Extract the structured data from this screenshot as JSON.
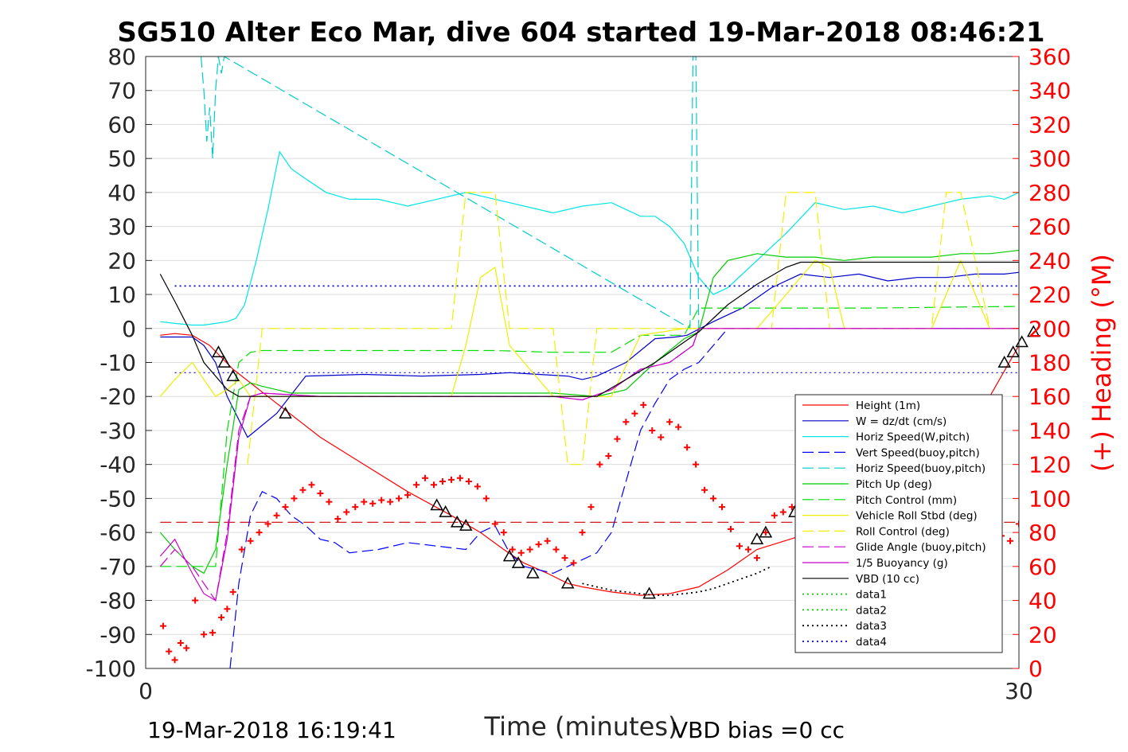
{
  "chart_data": {
    "type": "line",
    "title": "SG510 Alter Eco Mar, dive 604 started 19-Mar-2018 08:46:21",
    "xlabel": "Time (minutes)",
    "ylabel_right": "(+) Heading (°M)",
    "xlim": [
      0,
      30
    ],
    "ylim": [
      -100,
      80
    ],
    "ylim_right": [
      0,
      360
    ],
    "x_ticks": [
      "0",
      "30"
    ],
    "y_ticks": [
      "80",
      "70",
      "60",
      "50",
      "40",
      "30",
      "20",
      "10",
      "0",
      "-10",
      "-20",
      "-30",
      "-40",
      "-50",
      "-60",
      "-70",
      "-80",
      "-90",
      "-100"
    ],
    "y_ticks_right": [
      "360",
      "340",
      "320",
      "300",
      "280",
      "260",
      "240",
      "220",
      "200",
      "180",
      "160",
      "140",
      "120",
      "100",
      "80",
      "60",
      "40",
      "20",
      "0"
    ],
    "grid": "horizontal",
    "legend_position": "lower-right",
    "footer_left": "19-Mar-2018 16:19:41",
    "footer_right": "VBD bias =0 cc",
    "series": [
      {
        "name": "Height (1m)",
        "color": "#ff0000",
        "style": "solid",
        "x": [
          0.5,
          1.0,
          1.6,
          2.2,
          3.0,
          4.5,
          6.0,
          7.5,
          9.0,
          10.5,
          11.5,
          12.3,
          13.0,
          13.8,
          14.5,
          15.0,
          16.0,
          17.0,
          18.0,
          19.0,
          20.0,
          21.0,
          22.5,
          24.0,
          25.0,
          26.0,
          27.0,
          28.5,
          29.0,
          30.0,
          30.5
        ],
        "y": [
          -2,
          -1.5,
          -2,
          -5,
          -12,
          -22,
          -32,
          -40,
          -48,
          -55,
          -60,
          -65,
          -69,
          -72,
          -75,
          -76,
          -77.5,
          -78.5,
          -78,
          -76,
          -71,
          -65,
          -61,
          -56,
          -50,
          -42,
          -36,
          -28,
          -20,
          -5,
          -1
        ]
      },
      {
        "name": "W = dz/dt (cm/s)",
        "color": "#0000cc",
        "style": "solid",
        "x": [
          0.5,
          1.0,
          1.6,
          2.0,
          2.4,
          2.8,
          3.5,
          4.5,
          5.5,
          7.5,
          9.5,
          11.5,
          12.5,
          13.5,
          14.5,
          15.0,
          15.5,
          16.5,
          17.5,
          18.2,
          18.6,
          19.5,
          20.5,
          21.5,
          22.5,
          23.5,
          24.5,
          25.5,
          26.5,
          27.5,
          28.5,
          29.5,
          30.5,
          31.0,
          31.2
        ],
        "y": [
          -2.5,
          -2.5,
          -2.5,
          -5,
          -10,
          -20,
          -32,
          -25,
          -14,
          -13.5,
          -14,
          -13.5,
          -13,
          -13.5,
          -14,
          -15,
          -14,
          -10,
          -3,
          -2.5,
          -2,
          2,
          6,
          12,
          16,
          15,
          16,
          14,
          15,
          15,
          16,
          16,
          17,
          19,
          8
        ]
      },
      {
        "name": "Horiz Speed(W,pitch)",
        "color": "#00e5e5",
        "style": "solid",
        "x": [
          0.5,
          1.0,
          1.6,
          2.0,
          2.4,
          2.8,
          3.1,
          3.4,
          3.8,
          4.2,
          4.6,
          5.0,
          5.5,
          6.2,
          7.0,
          8.0,
          9.0,
          10.0,
          11.0,
          12.0,
          13.0,
          14.0,
          15.0,
          16.0,
          16.5,
          17.0,
          17.5,
          18.0,
          18.5,
          19.0,
          19.5,
          20.0,
          21.0,
          22.0,
          23.0,
          24.0,
          25.0,
          26.0,
          27.0,
          28.0,
          29.0,
          29.5,
          30.0,
          30.5,
          31.0
        ],
        "y": [
          2,
          1.5,
          1,
          1,
          1.5,
          2,
          3,
          7,
          20,
          35,
          52,
          47,
          44,
          40,
          38,
          38,
          36,
          38,
          40,
          38,
          36,
          34,
          36,
          37,
          35,
          33,
          33,
          30,
          25,
          15,
          10,
          12,
          20,
          28,
          37,
          35,
          36,
          34,
          36,
          38,
          39,
          38,
          40,
          40,
          39
        ]
      },
      {
        "name": "Vert Speed(buoy,pitch)",
        "color": "#0000ff",
        "style": "dashed",
        "x": [
          2.9,
          3.2,
          3.6,
          4.0,
          4.5,
          5.0,
          5.5,
          6.0,
          6.5,
          7.0,
          8.0,
          9.0,
          10.0,
          11.0,
          11.5,
          12.0,
          12.5,
          13.0,
          13.5,
          14.0,
          14.5,
          15.0,
          15.5,
          16.0,
          16.5,
          17.0,
          17.5,
          18.0,
          18.5,
          19.0,
          19.5,
          20.0,
          25.0,
          30.0,
          31.0,
          31.2
        ],
        "y": [
          -100,
          -75,
          -55,
          -48,
          -50,
          -55,
          -58,
          -62,
          -63,
          -66,
          -65,
          -63,
          -64,
          -65,
          -60,
          -58,
          -66,
          -70,
          -71,
          -72,
          -70,
          -68,
          -66,
          -60,
          -45,
          -30,
          -22,
          -15,
          -12,
          -10,
          -5,
          0,
          0,
          0,
          0,
          -30
        ]
      },
      {
        "name": "Horiz Speed(buoy,pitch)",
        "color": "#00cccc",
        "style": "dashed",
        "x": [
          1.9,
          2.0,
          2.1,
          2.2,
          2.3,
          2.4,
          2.5,
          2.6,
          2.7,
          18.7,
          18.8,
          18.9,
          19.0,
          31.0,
          31.1,
          31.2
        ],
        "y": [
          80,
          70,
          55,
          65,
          50,
          70,
          80,
          75,
          80,
          0,
          80,
          80,
          0,
          0,
          80,
          80
        ]
      },
      {
        "name": "Pitch Up (deg)",
        "color": "#00cc00",
        "style": "solid",
        "x": [
          0.5,
          1.0,
          1.6,
          2.0,
          2.4,
          2.8,
          3.2,
          3.6,
          4.0,
          4.5,
          5.0,
          6.0,
          8.0,
          10.0,
          12.0,
          14.0,
          15.5,
          16.5,
          17.5,
          18.5,
          19.0,
          19.5,
          20.0,
          21.0,
          22.0,
          23.0,
          24.0,
          25.0,
          26.0,
          27.0,
          28.0,
          29.0,
          30.0,
          30.5,
          31.0,
          31.2
        ],
        "y": [
          -60,
          -65,
          -70,
          -72,
          -65,
          -40,
          -18,
          -16,
          -17,
          -18,
          -19,
          -19,
          -19,
          -19,
          -19,
          -19,
          -20,
          -18,
          -10,
          -3,
          -1,
          15,
          20,
          22,
          21,
          21,
          20,
          21,
          21,
          21,
          22,
          22,
          23,
          25,
          28,
          -10
        ]
      },
      {
        "name": "Pitch Control (mm)",
        "color": "#00dd00",
        "style": "dashed",
        "x": [
          0.5,
          1.0,
          1.6,
          2.0,
          2.4,
          2.8,
          3.2,
          3.6,
          4.0,
          8.0,
          12.0,
          14.0,
          16.0,
          17.0,
          18.5,
          19.0,
          20.0,
          25.0,
          30.0,
          31.2
        ],
        "y": [
          -70,
          -70,
          -70,
          -70,
          -70,
          -30,
          -10,
          -7,
          -6.5,
          -6.5,
          -6.5,
          -7,
          -7,
          -2,
          -2,
          6,
          6,
          6,
          6.5,
          6.5
        ]
      },
      {
        "name": "Vehicle Roll Stbd (deg)",
        "color": "#eeee00",
        "style": "solid",
        "x": [
          0.5,
          1.0,
          1.6,
          2.0,
          2.4,
          2.8,
          3.2,
          3.6,
          4.0,
          5.0,
          6.0,
          8.0,
          10.0,
          10.5,
          11.0,
          11.5,
          12.0,
          12.5,
          14.0,
          15.0,
          16.0,
          17.0,
          18.5,
          19.0,
          20.0,
          21.0,
          22.0,
          23.0,
          23.5,
          24.0,
          25.0,
          26.0,
          27.0,
          27.5,
          28.0,
          29.0,
          30.0,
          30.5,
          31.0
        ],
        "y": [
          -20,
          -15,
          -10,
          -15,
          -20,
          -18,
          -15,
          -20,
          -20,
          -20,
          -20,
          -20,
          -20,
          -20,
          -5,
          15,
          18,
          -5,
          -20,
          -20,
          -20,
          -2,
          0,
          0,
          0,
          0,
          10,
          20,
          18,
          0,
          0,
          0,
          0,
          10,
          20,
          0,
          0,
          15,
          0
        ]
      },
      {
        "name": "Roll Control (deg)",
        "color": "#f0f000",
        "style": "dashed",
        "x": [
          3.5,
          4.0,
          5.0,
          6.0,
          10.0,
          10.5,
          11.0,
          11.5,
          12.0,
          12.5,
          14.0,
          14.5,
          15.0,
          15.5,
          16.0,
          19.0,
          20.0,
          21.5,
          22.0,
          22.5,
          23.0,
          23.5,
          24.0,
          25.0,
          26.0,
          27.0,
          27.5,
          28.0,
          29.0,
          30.0,
          30.5,
          31.0
        ],
        "y": [
          -40,
          0,
          0,
          0,
          0,
          0,
          40,
          40,
          40,
          0,
          0,
          -40,
          -40,
          0,
          0,
          0,
          0,
          0,
          40,
          40,
          40,
          0,
          0,
          0,
          0,
          0,
          40,
          40,
          0,
          0,
          40,
          0
        ]
      },
      {
        "name": "Glide Angle (buoy,pitch)",
        "color": "#cc00cc",
        "style": "dashed",
        "x": [
          0.5,
          1.0,
          1.6,
          2.0,
          2.4,
          2.8,
          3.2,
          3.6,
          4.0,
          6.0,
          8.0,
          10.0,
          12.0,
          14.0,
          15.0,
          16.0,
          17.0,
          18.0,
          18.8,
          19.0,
          25.0,
          30.0,
          31.0,
          31.2
        ],
        "y": [
          -70,
          -65,
          -70,
          -75,
          -80,
          -60,
          -30,
          -20,
          -19,
          -20,
          -20,
          -20,
          -20,
          -20,
          -21,
          -18,
          -12,
          -10,
          -5,
          0,
          0,
          0,
          0,
          -12
        ]
      },
      {
        "name": "1/5 Buoyancy (g)",
        "color": "#cc00cc",
        "style": "solid",
        "x": [
          0.5,
          1.0,
          1.6,
          2.0,
          2.4,
          2.8,
          3.2,
          3.6,
          4.0,
          6.0,
          8.0,
          10.0,
          12.0,
          14.0,
          15.0,
          16.0,
          17.0,
          18.0,
          18.8,
          19.0,
          25.0,
          30.0,
          31.0,
          31.2
        ],
        "y": [
          -67,
          -62,
          -72,
          -78,
          -80,
          -62,
          -32,
          -20,
          -19,
          -20,
          -20,
          -20,
          -20,
          -20,
          -21,
          -18,
          -12,
          -10,
          -5,
          0,
          0,
          0,
          0,
          -14
        ]
      },
      {
        "name": "VBD (10 cc)",
        "color": "#000000",
        "style": "solid",
        "x": [
          0.5,
          1.0,
          1.6,
          2.0,
          2.8,
          3.2,
          4.0,
          10.0,
          14.0,
          15.0,
          15.5,
          16.5,
          17.5,
          18.5,
          19.0,
          19.5,
          20.0,
          21.0,
          22.0,
          22.5,
          30.0,
          31.2
        ],
        "y": [
          16,
          8,
          -2,
          -10,
          -18,
          -20,
          -20,
          -20,
          -20,
          -20,
          -20,
          -15,
          -10,
          -4,
          -1,
          3,
          7,
          13,
          18,
          19.5,
          19.5,
          19.5
        ]
      },
      {
        "name": "data1",
        "color": "#00cc00",
        "style": "dotted",
        "x": [],
        "y": []
      },
      {
        "name": "data2",
        "color": "#00cc00",
        "style": "dotted",
        "x": [],
        "y": []
      },
      {
        "name": "data3",
        "color": "#000000",
        "style": "dotted",
        "x": [
          15.0,
          15.5,
          16.0,
          16.5,
          17.0,
          17.5,
          18.0,
          18.5,
          19.0,
          19.5,
          20.0,
          20.5,
          21.0,
          21.5
        ],
        "y": [
          -75,
          -76,
          -77,
          -77.5,
          -78,
          -78.5,
          -78.5,
          -78,
          -77.5,
          -76.5,
          -75,
          -73.5,
          -72,
          -70
        ]
      },
      {
        "name": "data4",
        "color": "#0000cc",
        "style": "dotted",
        "x": [
          1.0,
          31.2
        ],
        "y": [
          12.5,
          12.5
        ]
      }
    ],
    "extra_lines": [
      {
        "color": "#0000cc",
        "style": "dotted",
        "y": [
          -13,
          -13
        ],
        "x": [
          1.0,
          31.2
        ]
      },
      {
        "color": "#cc0000",
        "style": "dashed",
        "y": [
          -57,
          -57
        ],
        "x": [
          0.5,
          31.2
        ]
      }
    ],
    "triangles": {
      "x": [
        2.5,
        2.7,
        3.0,
        4.8,
        10.0,
        10.3,
        10.7,
        11.0,
        12.5,
        12.8,
        13.3,
        14.5,
        17.3,
        21.0,
        21.3,
        22.3,
        25.5,
        26.3,
        26.6,
        29.5,
        29.8,
        30.1,
        30.5
      ],
      "y": [
        -7,
        -10,
        -14,
        -25,
        -52,
        -54,
        -57,
        -58,
        -67,
        -69,
        -72,
        -75,
        -78,
        -62,
        -60,
        -54,
        -37,
        -30,
        -29,
        -10,
        -7,
        -4,
        -1
      ]
    },
    "heading_points": {
      "name": "Heading",
      "color": "#ff0000",
      "x": [
        0.6,
        0.8,
        1.0,
        1.2,
        1.4,
        1.7,
        2.0,
        2.3,
        2.6,
        2.8,
        3.0,
        3.3,
        3.6,
        3.9,
        4.2,
        4.5,
        4.8,
        5.1,
        5.4,
        5.7,
        6.0,
        6.3,
        6.6,
        6.9,
        7.2,
        7.5,
        7.8,
        8.1,
        8.4,
        8.7,
        9.0,
        9.3,
        9.6,
        9.9,
        10.2,
        10.5,
        10.8,
        11.1,
        11.4,
        11.7,
        12.0,
        12.3,
        12.6,
        12.9,
        13.2,
        13.5,
        13.8,
        14.1,
        14.4,
        14.7,
        15.0,
        15.3,
        15.6,
        15.9,
        16.2,
        16.5,
        16.8,
        17.1,
        17.4,
        17.7,
        18.0,
        18.3,
        18.6,
        18.9,
        19.2,
        19.5,
        19.8,
        20.1,
        20.4,
        20.7,
        21.0,
        21.3,
        21.6,
        21.9,
        22.2,
        22.5,
        22.8,
        23.1,
        23.4,
        23.7,
        24.0,
        24.3,
        24.6,
        24.9,
        25.2,
        25.5,
        25.8,
        26.1,
        26.4,
        26.7,
        27.0,
        27.3,
        27.6,
        27.9,
        28.2,
        28.5,
        28.8,
        29.1,
        29.4,
        29.7,
        30.0,
        30.3,
        30.6,
        30.9,
        31.1
      ],
      "y": [
        25,
        10,
        5,
        15,
        12,
        40,
        20,
        21,
        30,
        35,
        45,
        70,
        75,
        80,
        85,
        90,
        95,
        100,
        105,
        108,
        103,
        98,
        88,
        92,
        95,
        98,
        97,
        99,
        98,
        100,
        102,
        108,
        112,
        108,
        110,
        111,
        112,
        110,
        107,
        100,
        85,
        80,
        70,
        68,
        70,
        73,
        75,
        70,
        65,
        62,
        80,
        95,
        120,
        125,
        135,
        145,
        150,
        155,
        140,
        136,
        145,
        142,
        130,
        120,
        105,
        100,
        95,
        82,
        72,
        70,
        65,
        80,
        90,
        92,
        95,
        88,
        85,
        80,
        75,
        70,
        68,
        62,
        65,
        60,
        72,
        80,
        90,
        98,
        102,
        103,
        100,
        96,
        95,
        95,
        94,
        90,
        85,
        80,
        78,
        75,
        85,
        90,
        95,
        102,
        108
      ]
    }
  }
}
